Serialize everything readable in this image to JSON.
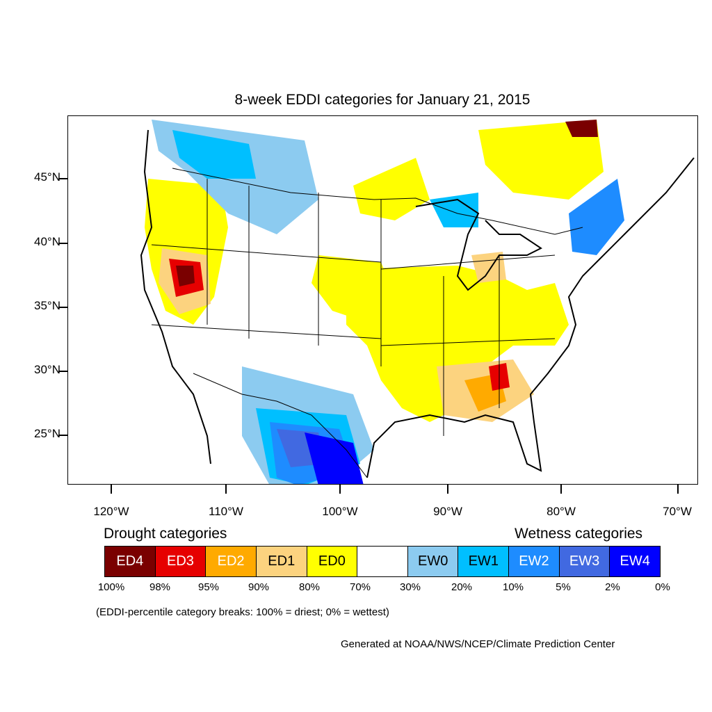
{
  "title": "8-week EDDI categories for January 21, 2015",
  "y_axis": [
    "45°N",
    "40°N",
    "35°N",
    "30°N",
    "25°N"
  ],
  "x_axis": [
    "120°W",
    "110°W",
    "100°W",
    "90°W",
    "80°W",
    "70°W"
  ],
  "legend": {
    "drought_heading": "Drought categories",
    "wetness_heading": "Wetness categories",
    "categories": [
      {
        "label": "ED4",
        "color": "#7a0000",
        "text_color": "#ffffff"
      },
      {
        "label": "ED3",
        "color": "#e60000",
        "text_color": "#ffffff"
      },
      {
        "label": "ED2",
        "color": "#ffaa00",
        "text_color": "#ffffff"
      },
      {
        "label": "ED1",
        "color": "#fcd37f",
        "text_color": "#000000"
      },
      {
        "label": "ED0",
        "color": "#ffff00",
        "text_color": "#000000"
      },
      {
        "label": "",
        "color": "#ffffff",
        "text_color": "#000000"
      },
      {
        "label": "EW0",
        "color": "#8ccbf0",
        "text_color": "#000000"
      },
      {
        "label": "EW1",
        "color": "#00bfff",
        "text_color": "#000000"
      },
      {
        "label": "EW2",
        "color": "#1e8cff",
        "text_color": "#ffffff"
      },
      {
        "label": "EW3",
        "color": "#4169e1",
        "text_color": "#ffffff"
      },
      {
        "label": "EW4",
        "color": "#0000ff",
        "text_color": "#ffffff"
      }
    ],
    "percentiles": [
      "100%",
      "98%",
      "95%",
      "90%",
      "80%",
      "70%",
      "30%",
      "20%",
      "10%",
      "5%",
      "2%",
      "0%"
    ]
  },
  "note": "(EDDI-percentile category breaks: 100% = driest; 0% = wettest)",
  "credit": "Generated at NOAA/NWS/NCEP/Climate Prediction Center"
}
